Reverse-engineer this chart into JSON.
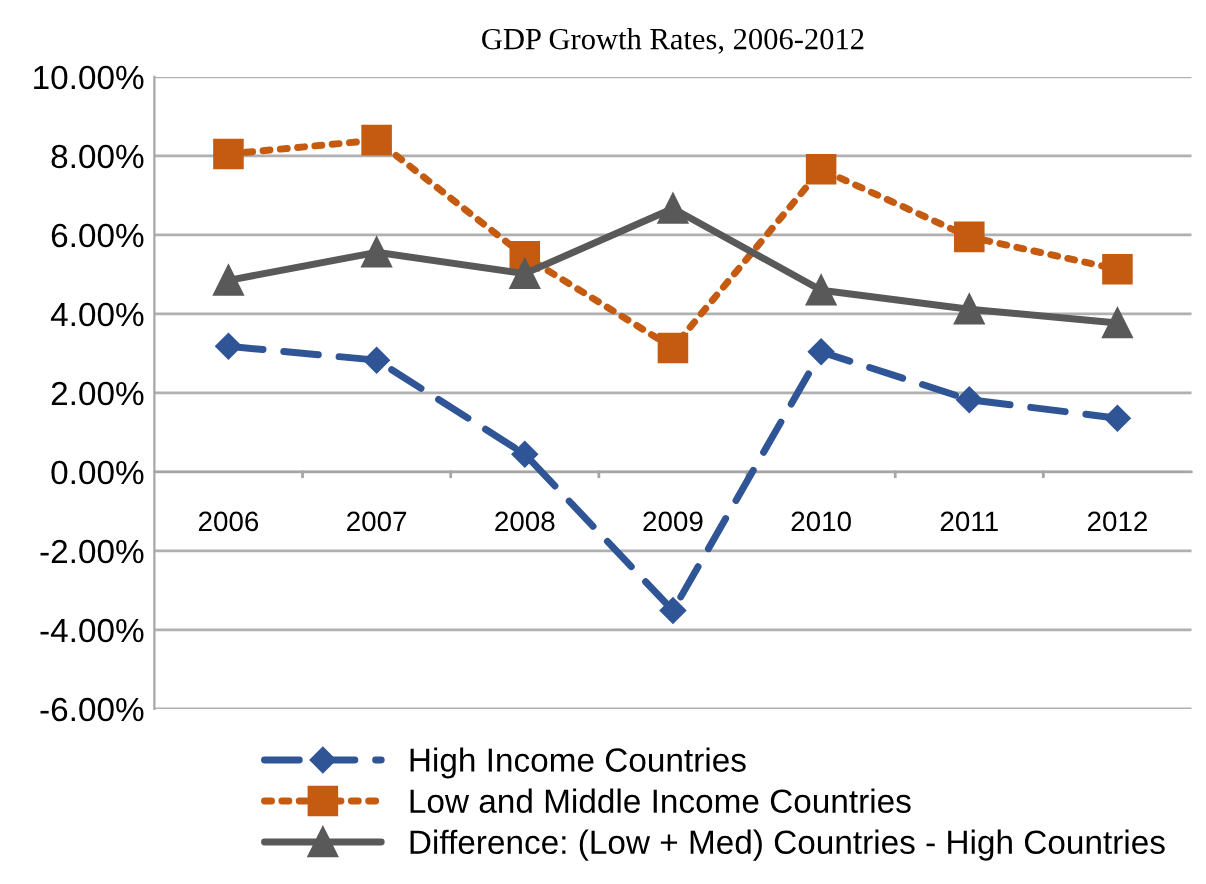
{
  "chart_data": {
    "type": "line",
    "title": "GDP Growth Rates, 2006-2012",
    "categories": [
      "2006",
      "2007",
      "2008",
      "2009",
      "2010",
      "2011",
      "2012"
    ],
    "series": [
      {
        "name": "High Income Countries",
        "color": "#2f5597",
        "values": [
          3.18,
          2.83,
          0.45,
          -3.51,
          3.04,
          1.83,
          1.36
        ],
        "marker": "diamond",
        "line_style": "dashed"
      },
      {
        "name": "Low and Middle Income Countries",
        "color": "#c55a11",
        "values": [
          8.05,
          8.4,
          5.46,
          3.14,
          7.66,
          5.95,
          5.13
        ],
        "marker": "square",
        "line_style": "dotted"
      },
      {
        "name": "Difference: (Low + Med) Countries - High Countries",
        "color": "#595959",
        "values": [
          4.85,
          5.56,
          5.02,
          6.67,
          4.6,
          4.12,
          3.77
        ],
        "marker": "triangle",
        "line_style": "solid"
      }
    ],
    "ylim": [
      -6,
      10
    ],
    "yticks": [
      {
        "value": -6,
        "label": "-6.00%"
      },
      {
        "value": -4,
        "label": "-4.00%"
      },
      {
        "value": -2,
        "label": "-2.00%"
      },
      {
        "value": 0,
        "label": "0.00%"
      },
      {
        "value": 2,
        "label": "2.00%"
      },
      {
        "value": 4,
        "label": "4.00%"
      },
      {
        "value": 6,
        "label": "6.00%"
      },
      {
        "value": 8,
        "label": "8.00%"
      },
      {
        "value": 10,
        "label": "10.00%"
      }
    ],
    "grid": "y",
    "legend": "bottom left"
  }
}
